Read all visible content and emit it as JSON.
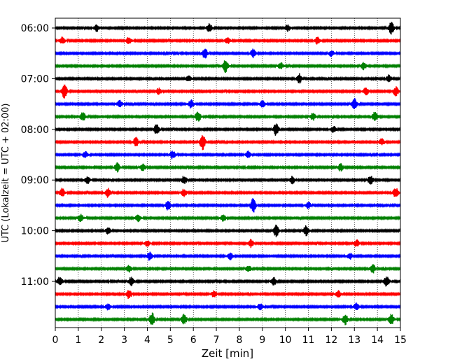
{
  "chart_data": {
    "type": "line",
    "title": "",
    "xlabel": "Zeit  [min]",
    "ylabel": "UTC (Lokalzeit = UTC + 02:00)",
    "xlim": [
      0,
      15
    ],
    "x_ticks": [
      "0",
      "1",
      "2",
      "3",
      "4",
      "5",
      "6",
      "7",
      "8",
      "9",
      "10",
      "11",
      "12",
      "13",
      "14",
      "15"
    ],
    "y_ticks": [
      "06:00",
      "07:00",
      "08:00",
      "09:00",
      "10:00",
      "11:00"
    ],
    "grid": "x-dotted",
    "trace_colors": [
      "#000000",
      "#ff0000",
      "#0000ff",
      "#008000"
    ],
    "series": [
      {
        "row": 0,
        "start": "06:00",
        "bursts": [
          [
            1.8,
            0.9
          ],
          [
            6.7,
            1.2
          ],
          [
            10.1,
            0.9
          ],
          [
            14.6,
            1.6
          ]
        ]
      },
      {
        "row": 1,
        "start": "06:15",
        "bursts": [
          [
            0.3,
            1.0
          ],
          [
            3.2,
            0.9
          ],
          [
            7.5,
            0.8
          ],
          [
            11.4,
            0.9
          ]
        ]
      },
      {
        "row": 2,
        "start": "06:30",
        "bursts": [
          [
            6.5,
            1.4
          ],
          [
            8.6,
            1.1
          ],
          [
            12.0,
            0.8
          ]
        ]
      },
      {
        "row": 3,
        "start": "06:45",
        "bursts": [
          [
            7.4,
            1.6
          ],
          [
            9.8,
            0.8
          ],
          [
            13.4,
            0.9
          ]
        ]
      },
      {
        "row": 4,
        "start": "07:00",
        "bursts": [
          [
            5.8,
            0.8
          ],
          [
            10.6,
            1.3
          ],
          [
            14.5,
            0.9
          ]
        ]
      },
      {
        "row": 5,
        "start": "07:15",
        "bursts": [
          [
            0.4,
            1.8
          ],
          [
            4.5,
            0.8
          ],
          [
            13.5,
            1.0
          ],
          [
            14.8,
            1.2
          ]
        ]
      },
      {
        "row": 6,
        "start": "07:30",
        "bursts": [
          [
            2.8,
            0.9
          ],
          [
            5.9,
            1.1
          ],
          [
            9.0,
            0.9
          ],
          [
            13.0,
            1.5
          ]
        ]
      },
      {
        "row": 7,
        "start": "07:45",
        "bursts": [
          [
            1.2,
            1.1
          ],
          [
            6.2,
            1.4
          ],
          [
            11.2,
            1.0
          ],
          [
            13.9,
            1.3
          ]
        ]
      },
      {
        "row": 8,
        "start": "08:00",
        "bursts": [
          [
            4.4,
            1.5
          ],
          [
            9.6,
            1.6
          ],
          [
            12.1,
            0.8
          ]
        ]
      },
      {
        "row": 9,
        "start": "08:15",
        "bursts": [
          [
            6.4,
            2.0
          ],
          [
            3.5,
            1.2
          ],
          [
            14.2,
            0.9
          ]
        ]
      },
      {
        "row": 10,
        "start": "08:30",
        "bursts": [
          [
            1.3,
            0.8
          ],
          [
            5.1,
            1.1
          ],
          [
            8.4,
            0.9
          ]
        ]
      },
      {
        "row": 11,
        "start": "08:45",
        "bursts": [
          [
            2.7,
            1.2
          ],
          [
            3.8,
            0.9
          ],
          [
            12.4,
            1.0
          ]
        ]
      },
      {
        "row": 12,
        "start": "09:00",
        "bursts": [
          [
            1.4,
            1.0
          ],
          [
            5.6,
            1.1
          ],
          [
            10.3,
            1.0
          ],
          [
            13.7,
            1.2
          ]
        ]
      },
      {
        "row": 13,
        "start": "09:15",
        "bursts": [
          [
            0.3,
            1.2
          ],
          [
            2.3,
            1.3
          ],
          [
            5.6,
            1.0
          ],
          [
            14.8,
            1.3
          ]
        ]
      },
      {
        "row": 14,
        "start": "09:30",
        "bursts": [
          [
            4.9,
            1.2
          ],
          [
            8.6,
            1.8
          ],
          [
            11.0,
            0.9
          ]
        ]
      },
      {
        "row": 15,
        "start": "09:45",
        "bursts": [
          [
            1.1,
            1.0
          ],
          [
            3.6,
            0.9
          ],
          [
            7.3,
            0.8
          ]
        ]
      },
      {
        "row": 16,
        "start": "10:00",
        "bursts": [
          [
            2.3,
            0.9
          ],
          [
            9.6,
            1.6
          ],
          [
            10.9,
            1.3
          ]
        ]
      },
      {
        "row": 17,
        "start": "10:15",
        "bursts": [
          [
            4.0,
            0.8
          ],
          [
            8.5,
            1.0
          ],
          [
            13.1,
            0.9
          ]
        ]
      },
      {
        "row": 18,
        "start": "10:30",
        "bursts": [
          [
            4.1,
            1.1
          ],
          [
            7.6,
            0.9
          ],
          [
            12.8,
            0.8
          ]
        ]
      },
      {
        "row": 19,
        "start": "10:45",
        "bursts": [
          [
            3.2,
            0.9
          ],
          [
            8.4,
            0.8
          ],
          [
            13.8,
            1.2
          ]
        ]
      },
      {
        "row": 20,
        "start": "11:00",
        "bursts": [
          [
            0.2,
            1.2
          ],
          [
            3.3,
            1.1
          ],
          [
            9.5,
            1.0
          ],
          [
            14.4,
            1.4
          ]
        ]
      },
      {
        "row": 21,
        "start": "11:15",
        "bursts": [
          [
            3.2,
            1.2
          ],
          [
            6.9,
            0.9
          ],
          [
            12.3,
            0.9
          ]
        ]
      },
      {
        "row": 22,
        "start": "11:30",
        "bursts": [
          [
            2.3,
            0.8
          ],
          [
            8.9,
            0.8
          ],
          [
            13.1,
            0.9
          ]
        ]
      },
      {
        "row": 23,
        "start": "11:45",
        "bursts": [
          [
            4.2,
            1.8
          ],
          [
            5.6,
            1.3
          ],
          [
            12.6,
            1.3
          ],
          [
            14.6,
            1.4
          ]
        ]
      }
    ]
  }
}
